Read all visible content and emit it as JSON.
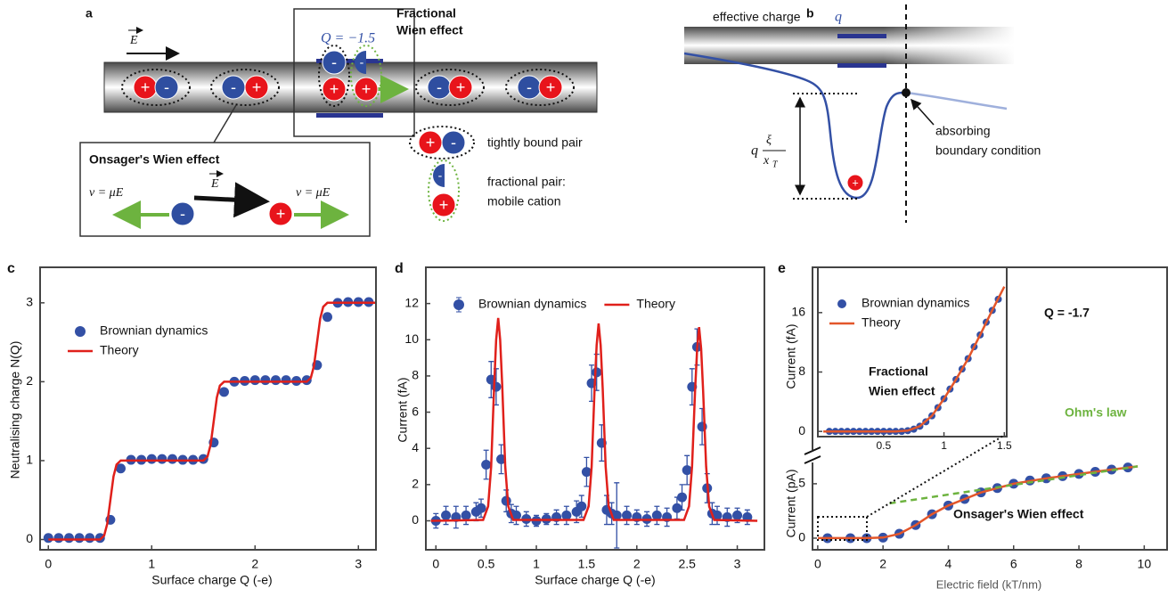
{
  "panel_a": {
    "label": "a",
    "field": "E",
    "charge_label": "Q = −1.5",
    "fractional_title": [
      "Fractional",
      "Wien effect"
    ],
    "onsager_title": "Onsager's Wien effect",
    "velocity": "v = μE",
    "key": [
      "tightly bound pair",
      "fractional pair:",
      "mobile cation"
    ]
  },
  "panel_b": {
    "label": "b",
    "effective_charge": "effective charge",
    "q": "q",
    "xi": "ξ",
    "x": "x",
    "T": "T",
    "boundary": [
      "absorbing",
      "boundary condition"
    ]
  },
  "ions": {
    "plus": "+",
    "minus": "-"
  },
  "chart_data": [
    {
      "type": "scatter",
      "label": "c",
      "xlabel": "Surface charge Q (-e)",
      "ylabel": "Neutralising charge N(Q)",
      "xlim": [
        -0.08,
        3.17
      ],
      "ylim": [
        -0.13,
        3.45
      ],
      "xticks": [
        0,
        1,
        2,
        3
      ],
      "yticks": [
        0,
        1,
        2,
        3
      ],
      "legend": "upper-left",
      "series": [
        {
          "name": "Brownian dynamics",
          "color": "#3350a5",
          "mode": "markers",
          "x": [
            0,
            0.1,
            0.2,
            0.3,
            0.4,
            0.5,
            0.6,
            0.7,
            0.8,
            0.9,
            1.0,
            1.1,
            1.2,
            1.3,
            1.4,
            1.5,
            1.6,
            1.7,
            1.8,
            1.9,
            2.0,
            2.1,
            2.2,
            2.3,
            2.4,
            2.5,
            2.6,
            2.7,
            2.8,
            2.9,
            3.0,
            3.1
          ],
          "values": [
            0.02,
            0.02,
            0.02,
            0.02,
            0.02,
            0.02,
            0.25,
            0.9,
            1.01,
            1.01,
            1.02,
            1.02,
            1.02,
            1.01,
            1.01,
            1.02,
            1.23,
            1.87,
            2.0,
            2.01,
            2.02,
            2.02,
            2.02,
            2.02,
            2.01,
            2.02,
            2.21,
            2.82,
            3.0,
            3.01,
            3.01,
            3.01
          ]
        },
        {
          "name": "Theory",
          "color": "#e0201b",
          "mode": "line",
          "x": [
            0,
            0.5,
            0.54,
            0.57,
            0.6,
            0.63,
            0.66,
            0.7,
            0.8,
            1.5,
            1.54,
            1.57,
            1.6,
            1.63,
            1.66,
            1.7,
            1.8,
            2.5,
            2.54,
            2.57,
            2.6,
            2.63,
            2.66,
            2.7,
            2.8,
            3.17
          ],
          "values": [
            0,
            0,
            0.05,
            0.2,
            0.5,
            0.8,
            0.95,
            1,
            1,
            1,
            1.05,
            1.2,
            1.5,
            1.8,
            1.95,
            2,
            2,
            2,
            2.05,
            2.2,
            2.5,
            2.8,
            2.95,
            3,
            3,
            3
          ]
        }
      ]
    },
    {
      "type": "scatter",
      "label": "d",
      "xlabel": "Surface charge Q (-e)",
      "ylabel": "Current (fA)",
      "xlim": [
        -0.1,
        3.27
      ],
      "ylim": [
        -1.6,
        14
      ],
      "xticks": [
        0,
        0.5,
        1,
        1.5,
        2,
        2.5,
        3
      ],
      "yticks": [
        0,
        2,
        4,
        6,
        8,
        10,
        12
      ],
      "legend": "upper-center",
      "series": [
        {
          "name": "Brownian dynamics",
          "color": "#3350a5",
          "mode": "markers",
          "x": [
            0,
            0.1,
            0.2,
            0.3,
            0.4,
            0.45,
            0.5,
            0.55,
            0.6,
            0.65,
            0.7,
            0.75,
            0.8,
            0.9,
            1.0,
            1.1,
            1.2,
            1.3,
            1.4,
            1.45,
            1.5,
            1.55,
            1.6,
            1.65,
            1.7,
            1.75,
            1.8,
            1.9,
            2.0,
            2.1,
            2.2,
            2.3,
            2.4,
            2.45,
            2.5,
            2.55,
            2.6,
            2.65,
            2.7,
            2.75,
            2.8,
            2.9,
            3.0,
            3.1
          ],
          "values": [
            0,
            0.3,
            0.2,
            0.3,
            0.5,
            0.7,
            3.1,
            7.8,
            7.4,
            3.4,
            1.1,
            0.4,
            0.3,
            0.1,
            0,
            0.1,
            0.2,
            0.3,
            0.5,
            0.8,
            2.7,
            7.6,
            8.2,
            4.3,
            0.6,
            0.4,
            0.3,
            0.3,
            0.2,
            0.1,
            0.3,
            0.2,
            0.7,
            1.3,
            2.8,
            7.4,
            9.6,
            5.2,
            1.8,
            0.4,
            0.3,
            0.2,
            0.3,
            0.2
          ],
          "errors": [
            0.4,
            0.5,
            0.6,
            0.5,
            0.5,
            0.5,
            0.8,
            1.0,
            1.0,
            0.8,
            0.6,
            0.5,
            0.5,
            0.4,
            0.3,
            0.3,
            0.4,
            0.5,
            0.6,
            0.6,
            0.8,
            1.0,
            1.0,
            1.0,
            0.8,
            0.6,
            1.8,
            0.5,
            0.4,
            0.4,
            0.5,
            0.5,
            0.6,
            0.7,
            0.8,
            1.0,
            1.0,
            1.0,
            0.8,
            0.6,
            0.5,
            0.5,
            0.4,
            0.4
          ]
        },
        {
          "name": "Theory",
          "color": "#e0201b",
          "mode": "line",
          "x": [
            -0.05,
            0.47,
            0.52,
            0.55,
            0.58,
            0.6,
            0.62,
            0.64,
            0.66,
            0.69,
            0.72,
            0.77,
            1.47,
            1.52,
            1.55,
            1.58,
            1.6,
            1.62,
            1.64,
            1.66,
            1.69,
            1.72,
            1.77,
            2.47,
            2.52,
            2.55,
            2.58,
            2.6,
            2.62,
            2.64,
            2.66,
            2.69,
            2.72,
            2.77,
            3.2
          ],
          "values": [
            0,
            0.05,
            0.8,
            3,
            7.5,
            10,
            11.2,
            10,
            7.5,
            3,
            0.8,
            0.05,
            0.05,
            0.8,
            3,
            7.3,
            9.7,
            10.9,
            9.7,
            7.3,
            3,
            0.8,
            0.05,
            0.05,
            0.8,
            3,
            7.2,
            9.5,
            10.7,
            9.5,
            7.2,
            3,
            0.8,
            0.05,
            0
          ]
        }
      ]
    },
    {
      "type": "scatter",
      "label": "e",
      "xlabel": "Electric field (kT/nm)",
      "ylabel": "Current (pA)",
      "xlim": [
        -0.16,
        10.7
      ],
      "ylim": [
        -1.07,
        24.9
      ],
      "xticks": [
        0,
        2,
        4,
        6,
        8,
        10
      ],
      "yticks": [
        0,
        5
      ],
      "annotations": [
        "Q = -1.7",
        "Ohm's law",
        "Onsager's Wien effect"
      ],
      "series": [
        {
          "color": "#3350a5",
          "mode": "markers",
          "x": [
            0.3,
            1,
            1.5,
            2,
            2.5,
            3,
            3.5,
            4,
            4.5,
            5,
            5.5,
            6,
            6.5,
            7,
            7.5,
            8,
            8.5,
            9,
            9.5
          ],
          "values": [
            0,
            0,
            0,
            0.05,
            0.4,
            1.2,
            2.2,
            3.0,
            3.6,
            4.2,
            4.6,
            5.0,
            5.3,
            5.5,
            5.7,
            5.9,
            6.1,
            6.3,
            6.5
          ]
        },
        {
          "color": "#e3562a",
          "mode": "line",
          "x": [
            0,
            1.5,
            2,
            2.5,
            3,
            3.5,
            4,
            4.5,
            5,
            6,
            7,
            8,
            9,
            9.8
          ],
          "values": [
            0,
            0,
            0.05,
            0.4,
            1.2,
            2.2,
            3.0,
            3.6,
            4.2,
            5.0,
            5.5,
            5.9,
            6.3,
            6.6
          ]
        },
        {
          "color": "#6db33f",
          "mode": "dashed",
          "x": [
            2.2,
            9.8
          ],
          "values": [
            3.2,
            6.6
          ]
        }
      ]
    },
    {
      "type": "scatter",
      "ylabel": "Current (fA)",
      "xlim": [
        -0.045,
        1.52
      ],
      "ylim": [
        -0.7,
        22.1
      ],
      "xticks": [
        0.5,
        1,
        1.5
      ],
      "yticks": [
        0,
        8,
        16
      ],
      "legend": "upper-left",
      "annotations": [
        "Fractional",
        "Wien effect"
      ],
      "series": [
        {
          "name": "Brownian dynamics",
          "color": "#3350a5",
          "mode": "markers",
          "x": [
            0.05,
            0.1,
            0.15,
            0.2,
            0.25,
            0.3,
            0.35,
            0.4,
            0.45,
            0.5,
            0.55,
            0.6,
            0.65,
            0.7,
            0.75,
            0.8,
            0.85,
            0.9,
            0.95,
            1.0,
            1.05,
            1.1,
            1.15,
            1.2,
            1.25,
            1.3,
            1.35,
            1.4,
            1.45
          ],
          "values": [
            0,
            0,
            0,
            0,
            0,
            0,
            0,
            0,
            0,
            0,
            0,
            0,
            0,
            0.1,
            0.3,
            0.7,
            1.3,
            2.1,
            3.2,
            4.4,
            5.7,
            7.0,
            8.4,
            9.8,
            11.4,
            13.0,
            14.7,
            16.3,
            17.8
          ]
        },
        {
          "name": "Theory",
          "color": "#e3562a",
          "mode": "line",
          "x": [
            0,
            0.6,
            0.7,
            0.8,
            0.9,
            1.0,
            1.1,
            1.2,
            1.3,
            1.4,
            1.5
          ],
          "values": [
            0,
            0,
            0.1,
            0.7,
            2.1,
            4.4,
            7.0,
            9.8,
            13.0,
            16.3,
            19.5
          ]
        }
      ]
    }
  ]
}
